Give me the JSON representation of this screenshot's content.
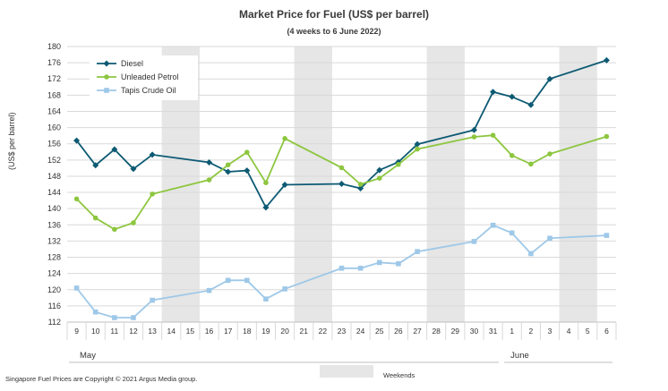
{
  "chart_data": {
    "type": "line",
    "title": "Market Price for Fuel (US$ per barrel)",
    "subtitle": "(4 weeks to 6 June 2022)",
    "ylabel": "(US$ per barrel)",
    "ylim": [
      112,
      180
    ],
    "yticks": [
      112,
      116,
      120,
      124,
      128,
      132,
      136,
      140,
      144,
      148,
      152,
      156,
      160,
      164,
      168,
      172,
      176,
      180
    ],
    "categories": [
      "9",
      "10",
      "11",
      "12",
      "13",
      "14",
      "15",
      "16",
      "17",
      "18",
      "19",
      "20",
      "21",
      "22",
      "23",
      "24",
      "25",
      "26",
      "27",
      "28",
      "29",
      "30",
      "31",
      "1",
      "2",
      "3",
      "4",
      "5",
      "6"
    ],
    "months": [
      {
        "label": "May",
        "start": 0,
        "end": 22
      },
      {
        "label": "June",
        "start": 23,
        "end": 28
      }
    ],
    "weekends": [
      [
        5,
        6
      ],
      [
        12,
        13
      ],
      [
        19,
        20
      ],
      [
        26,
        27
      ]
    ],
    "grid": true,
    "legend_position": "top-left",
    "series": [
      {
        "name": "Diesel",
        "color": "#0d5a73",
        "marker": "diamond",
        "values": [
          156.8,
          150.7,
          154.6,
          149.8,
          153.3,
          null,
          null,
          151.4,
          149.1,
          149.4,
          140.3,
          145.9,
          null,
          null,
          146.1,
          145.0,
          149.5,
          151.5,
          155.9,
          null,
          null,
          159.4,
          168.8,
          167.6,
          165.6,
          172.0,
          null,
          null,
          176.6
        ]
      },
      {
        "name": "Unleaded Petrol",
        "color": "#8dc63f",
        "marker": "circle",
        "values": [
          142.4,
          137.7,
          134.9,
          136.5,
          143.6,
          null,
          null,
          147.1,
          150.8,
          153.9,
          146.4,
          157.3,
          null,
          null,
          150.1,
          146.0,
          147.5,
          150.9,
          154.7,
          null,
          null,
          157.7,
          158.1,
          153.1,
          151.0,
          153.5,
          null,
          null,
          157.8
        ]
      },
      {
        "name": "Tapis Crude Oil",
        "color": "#9ec8e8",
        "marker": "square",
        "values": [
          120.4,
          114.5,
          113.1,
          113.1,
          117.4,
          null,
          null,
          119.8,
          122.3,
          122.3,
          117.7,
          120.2,
          null,
          null,
          125.3,
          125.3,
          126.7,
          126.4,
          129.4,
          null,
          null,
          131.9,
          135.9,
          134.0,
          128.9,
          132.7,
          null,
          null,
          133.4
        ]
      }
    ]
  },
  "footer": {
    "weekends_label": "Weekends",
    "copyright": "Singapore  Fuel  Prices  are Copyright  © 2021  Argus  Media  group."
  }
}
